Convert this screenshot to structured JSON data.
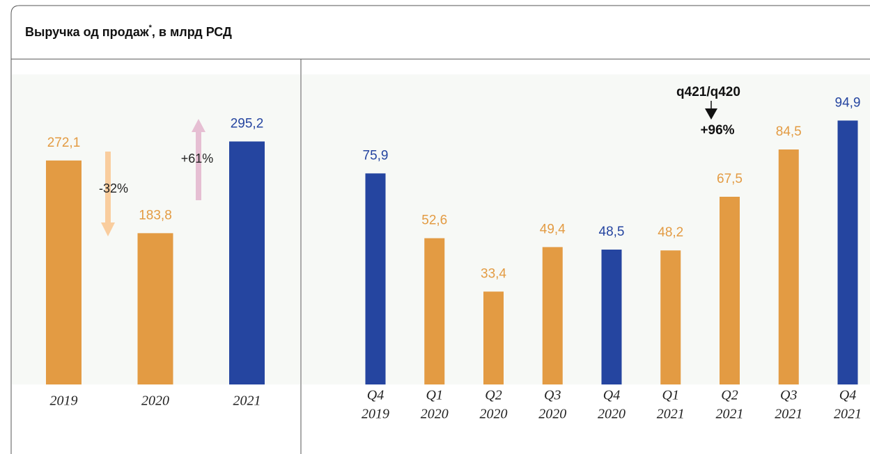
{
  "header": {
    "title": "Выручка од продаж",
    "title_mark": "*",
    "title_suffix": ", в млрд РСД"
  },
  "chart_data": [
    {
      "type": "bar",
      "categories": [
        [
          "2019"
        ],
        [
          "2020"
        ],
        [
          "2021"
        ]
      ],
      "values": [
        272.1,
        183.8,
        295.2
      ],
      "value_labels": [
        "272,1",
        "183,8",
        "295,2"
      ],
      "colors": [
        "#e39b43",
        "#e39b43",
        "#2545a0"
      ],
      "ylim": [
        0,
        375
      ],
      "annotations": [
        "-32%",
        "+61%"
      ]
    },
    {
      "type": "bar",
      "categories": [
        [
          "Q4",
          "2019"
        ],
        [
          "Q1",
          "2020"
        ],
        [
          "Q2",
          "2020"
        ],
        [
          "Q3",
          "2020"
        ],
        [
          "Q4",
          "2020"
        ],
        [
          "Q1",
          "2021"
        ],
        [
          "Q2",
          "2021"
        ],
        [
          "Q3",
          "2021"
        ],
        [
          "Q4",
          "2021"
        ]
      ],
      "values": [
        75.9,
        52.6,
        33.4,
        49.4,
        48.5,
        48.2,
        67.5,
        84.5,
        94.9
      ],
      "value_labels": [
        "75,9",
        "52,6",
        "33,4",
        "49,4",
        "48,5",
        "48,2",
        "67,5",
        "84,5",
        "94,9"
      ],
      "colors": [
        "#2545a0",
        "#e39b43",
        "#e39b43",
        "#e39b43",
        "#2545a0",
        "#e39b43",
        "#e39b43",
        "#e39b43",
        "#2545a0"
      ],
      "ylim": [
        0,
        111
      ],
      "annotations": [
        "q421/q420",
        "+96%"
      ]
    }
  ]
}
